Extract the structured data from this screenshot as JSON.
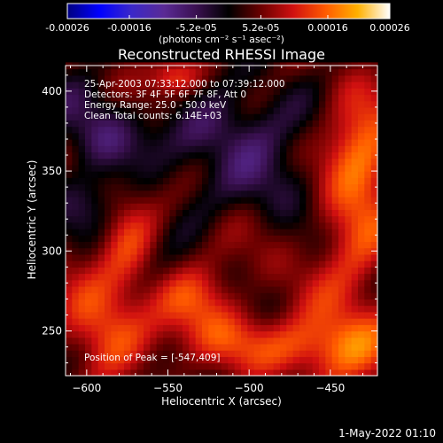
{
  "colorbar": {
    "tick_labels": [
      "-0.00026",
      "-0.00016",
      "-5.2e-05",
      "5.2e-05",
      "0.00016",
      "0.00026"
    ],
    "tick_values": [
      -0.00026,
      -0.00016,
      -5.2e-05,
      5.2e-05,
      0.00016,
      0.00026
    ],
    "range": [
      -0.00026,
      0.00026
    ],
    "label": "(photons cm⁻² s⁻¹ asec⁻²)",
    "colors": [
      "#000080",
      "#0000ff",
      "#3b28c8",
      "#5a2a95",
      "#3a1050",
      "#000000",
      "#6a0000",
      "#d01010",
      "#ff5a00",
      "#ffb000",
      "#ffffff"
    ]
  },
  "chart_data": {
    "type": "heatmap",
    "title": "Reconstructed RHESSI Image",
    "xlabel": "Heliocentric X (arcsec)",
    "ylabel": "Heliocentric Y (arcsec)",
    "xlim": [
      -613,
      -421
    ],
    "ylim": [
      222,
      416
    ],
    "xticks": [
      -600,
      -550,
      -500,
      -450
    ],
    "yticks": [
      250,
      300,
      350,
      400
    ],
    "peak": [
      -547,
      409
    ],
    "colormap": "blue-purple-black-red-yellow-white",
    "annotations": [
      "25-Apr-2003 07:33:12.000 to 07:39:12.000",
      "Detectors: 3F 4F 5F 6F 7F 8F, Att 0",
      "Energy Range: 25.0 - 50.0 keV",
      "Clean     Total counts: 6.14E+03",
      "Position of Peak = [-547,409]"
    ]
  },
  "footer": {
    "timestamp": "1-May-2022 01:10"
  }
}
